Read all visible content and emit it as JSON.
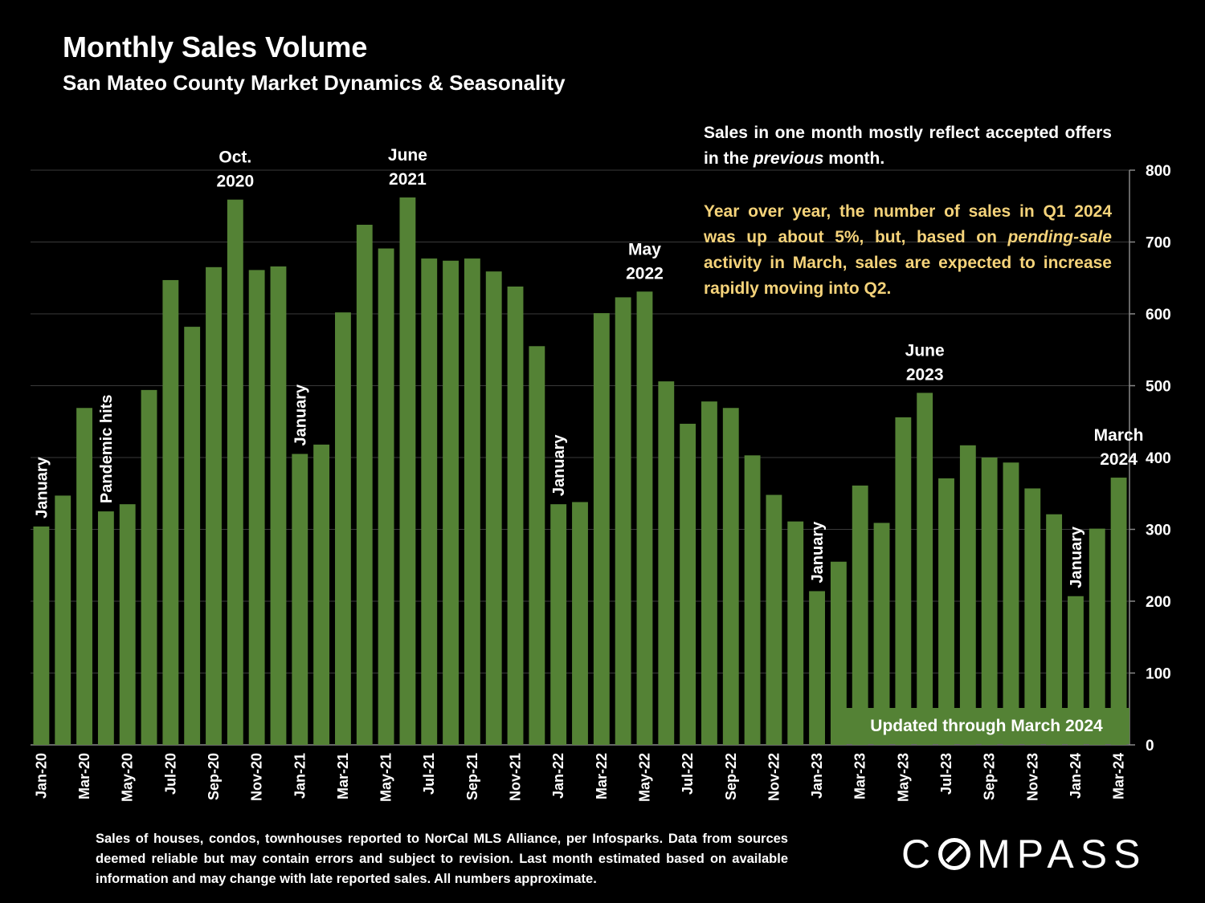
{
  "header": {
    "title": "Monthly Sales Volume",
    "subtitle": "San Mateo County Market Dynamics & Seasonality"
  },
  "notes": {
    "note1_a": "Sales in one month mostly reflect accepted offers in the ",
    "note1_em": "previous",
    "note1_b": " month.",
    "note2_a": "Year over year, the number of sales in Q1 2024 was up about 5%, but, based on ",
    "note2_em": "pending-sale",
    "note2_b": " activity in March, sales are expected to increase rapidly moving into Q2."
  },
  "badge": "Updated through March 2024",
  "footnote": "Sales of houses, condos, townhouses reported to NorCal MLS Alliance, per Infosparks. Data from sources deemed reliable but may contain errors and subject to revision. Last month estimated based on available information and may change with late reported sales. All numbers approximate.",
  "logo": {
    "before": "C",
    "after": "MPASS",
    "icon": "compass-o-icon"
  },
  "colors": {
    "bar": "#548235",
    "background": "#000000",
    "highlight_text": "#f5d37a",
    "grid": "#3a3a3a"
  },
  "chart_data": {
    "type": "bar",
    "ylim": [
      0,
      800
    ],
    "y_ticks": [
      0,
      100,
      200,
      300,
      400,
      500,
      600,
      700,
      800
    ],
    "y_axis_side": "right",
    "grid": true,
    "categories": [
      "Jan-20",
      "Feb-20",
      "Mar-20",
      "Apr-20",
      "May-20",
      "Jun-20",
      "Jul-20",
      "Aug-20",
      "Sep-20",
      "Oct-20",
      "Nov-20",
      "Dec-20",
      "Jan-21",
      "Feb-21",
      "Mar-21",
      "Apr-21",
      "May-21",
      "Jun-21",
      "Jul-21",
      "Aug-21",
      "Sep-21",
      "Oct-21",
      "Nov-21",
      "Dec-21",
      "Jan-22",
      "Feb-22",
      "Mar-22",
      "Apr-22",
      "May-22",
      "Jun-22",
      "Jul-22",
      "Aug-22",
      "Sep-22",
      "Oct-22",
      "Nov-22",
      "Dec-22",
      "Jan-23",
      "Feb-23",
      "Mar-23",
      "Apr-23",
      "May-23",
      "Jun-23",
      "Jul-23",
      "Aug-23",
      "Sep-23",
      "Oct-23",
      "Nov-23",
      "Dec-23",
      "Jan-24",
      "Feb-24",
      "Mar-24"
    ],
    "x_tick_labels": [
      "Jan-20",
      "",
      "Mar-20",
      "",
      "May-20",
      "",
      "Jul-20",
      "",
      "Sep-20",
      "",
      "Nov-20",
      "",
      "Jan-21",
      "",
      "Mar-21",
      "",
      "May-21",
      "",
      "Jul-21",
      "",
      "Sep-21",
      "",
      "Nov-21",
      "",
      "Jan-22",
      "",
      "Mar-22",
      "",
      "May-22",
      "",
      "Jul-22",
      "",
      "Sep-22",
      "",
      "Nov-22",
      "",
      "Jan-23",
      "",
      "Mar-23",
      "",
      "May-23",
      "",
      "Jul-23",
      "",
      "Sep-23",
      "",
      "Nov-23",
      "",
      "Jan-24",
      "",
      "Mar-24"
    ],
    "values": [
      304,
      347,
      469,
      325,
      335,
      494,
      647,
      582,
      665,
      759,
      661,
      666,
      405,
      418,
      602,
      724,
      691,
      762,
      677,
      674,
      677,
      659,
      638,
      555,
      335,
      338,
      601,
      623,
      631,
      506,
      447,
      478,
      469,
      403,
      348,
      311,
      214,
      255,
      361,
      309,
      456,
      490,
      371,
      417,
      400,
      393,
      357,
      321,
      207,
      301,
      372
    ],
    "annotations": [
      {
        "text": "January",
        "index": 0,
        "rotated": true
      },
      {
        "text": "Pandemic hits",
        "index": 3,
        "rotated": true
      },
      {
        "text": "Oct.\n2020",
        "index": 9,
        "rotated": false
      },
      {
        "text": "January",
        "index": 12,
        "rotated": true
      },
      {
        "text": "June\n2021",
        "index": 17,
        "rotated": false
      },
      {
        "text": "January",
        "index": 24,
        "rotated": true
      },
      {
        "text": "May\n2022",
        "index": 28,
        "rotated": false
      },
      {
        "text": "January",
        "index": 36,
        "rotated": true
      },
      {
        "text": "June\n2023",
        "index": 41,
        "rotated": false
      },
      {
        "text": "January",
        "index": 48,
        "rotated": true
      },
      {
        "text": "March\n2024",
        "index": 50,
        "rotated": false
      }
    ]
  }
}
